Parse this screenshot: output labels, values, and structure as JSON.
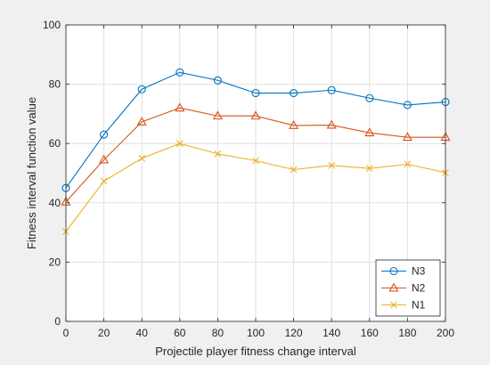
{
  "chart_data": {
    "type": "line",
    "title": "",
    "xlabel": "Projectile player fitness change interval",
    "ylabel": "Fitness interval function value",
    "x": [
      0,
      20,
      40,
      60,
      80,
      100,
      120,
      140,
      160,
      180,
      200
    ],
    "xlim": [
      0,
      200
    ],
    "ylim": [
      0,
      100
    ],
    "xticks": [
      0,
      20,
      40,
      60,
      80,
      100,
      120,
      140,
      160,
      180,
      200
    ],
    "yticks": [
      0,
      20,
      40,
      60,
      80,
      100
    ],
    "grid": true,
    "legend_position": "bottom-right",
    "series": [
      {
        "name": "N3",
        "color": "#0072bd",
        "marker": "circle",
        "values": [
          45,
          63,
          78.3,
          84,
          81.3,
          77,
          77,
          78,
          75.3,
          73,
          74
        ]
      },
      {
        "name": "N2",
        "color": "#d95319",
        "marker": "triangle",
        "values": [
          40.3,
          54.5,
          67.3,
          72,
          69.3,
          69.3,
          66.1,
          66.2,
          63.6,
          62.1,
          62.1
        ]
      },
      {
        "name": "N1",
        "color": "#edb120",
        "marker": "x",
        "values": [
          30.3,
          47.3,
          55,
          60,
          56.5,
          54.2,
          51.2,
          52.6,
          51.6,
          53,
          50.2
        ]
      }
    ]
  }
}
